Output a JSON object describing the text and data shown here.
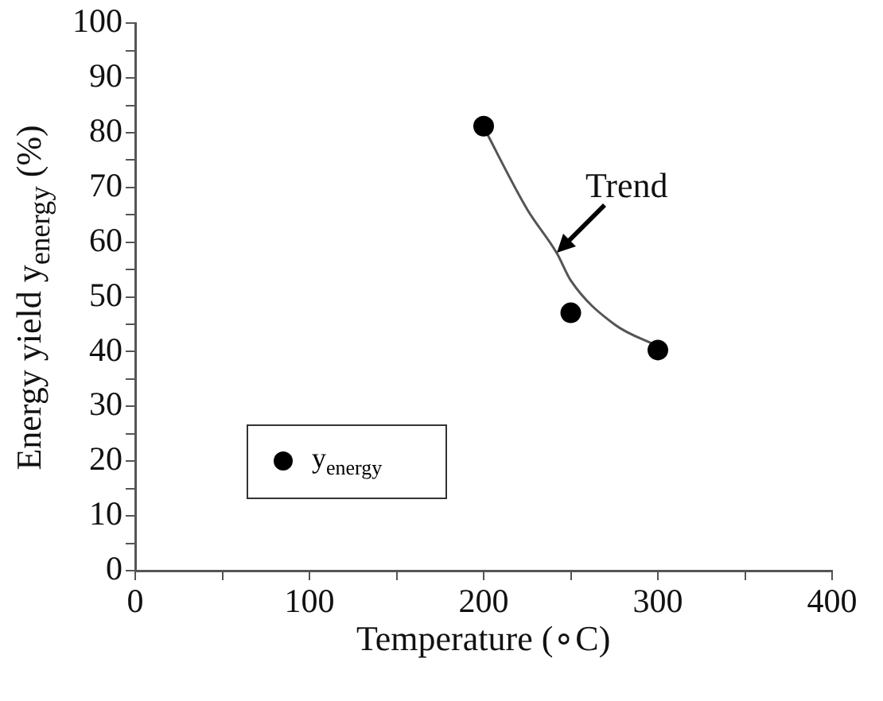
{
  "chart_data": {
    "type": "scatter",
    "xlabel": "Temperature (∘C)",
    "ylabel": "Energy yield y$_{energy}$ (%)",
    "xlim": [
      0,
      400
    ],
    "ylim": [
      0,
      100
    ],
    "xticks": [
      0,
      {
        "value": 50,
        "label": null
      },
      100,
      {
        "value": 150,
        "label": null
      },
      200,
      {
        "value": 250,
        "label": null
      },
      300,
      {
        "value": 350,
        "label": null
      },
      400
    ],
    "yticks": [
      0,
      {
        "value": 5,
        "label": null
      },
      10,
      {
        "value": 15,
        "label": null
      },
      20,
      {
        "value": 25,
        "label": null
      },
      30,
      {
        "value": 35,
        "label": null
      },
      40,
      {
        "value": 45,
        "label": null
      },
      50,
      {
        "value": 55,
        "label": null
      },
      60,
      {
        "value": 65,
        "label": null
      },
      70,
      {
        "value": 75,
        "label": null
      },
      80,
      {
        "value": 85,
        "label": null
      },
      90,
      {
        "value": 95,
        "label": null
      },
      100
    ],
    "grid": false,
    "legend": "bottom left",
    "marker": "circle",
    "series": [
      {
        "name": "y$_{energy}$",
        "color": "#000000",
        "x": [
          200,
          250,
          300
        ],
        "values": [
          81.2,
          47.1,
          40.3
        ]
      },
      {
        "type": "line",
        "color": "#555555",
        "line_style": "solid",
        "marker": "none",
        "x": [
          200,
          225,
          242,
          250,
          275,
          300
        ],
        "values": [
          81,
          66,
          58,
          53,
          45,
          41
        ]
      }
    ],
    "annotations": [
      {
        "text": "Trend",
        "x": 242,
        "y": 58
      }
    ]
  }
}
